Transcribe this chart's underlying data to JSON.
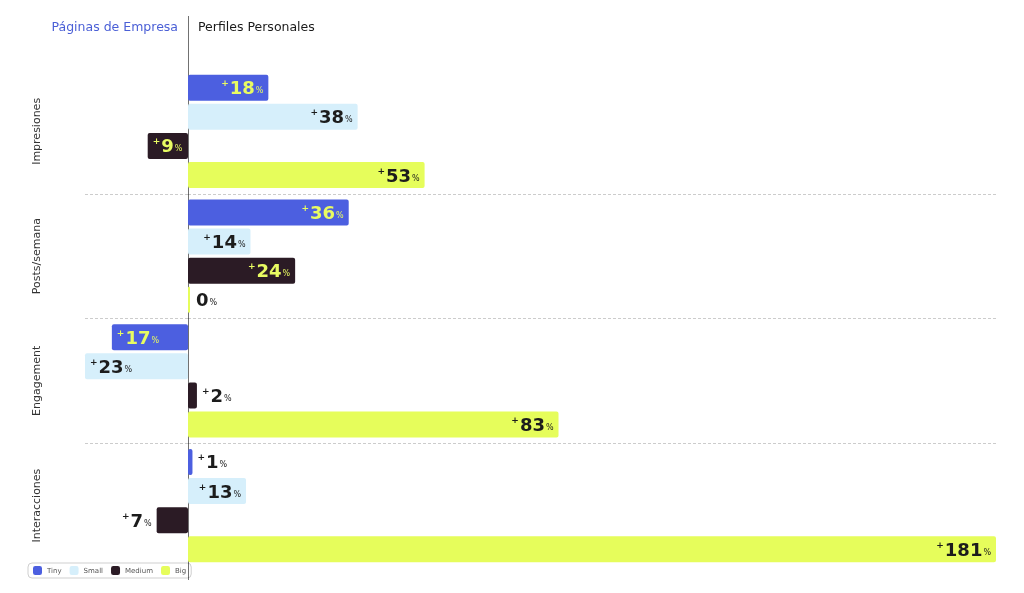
{
  "chart_data": [
    {
      "type": "bar",
      "orientation": "horizontal",
      "title": "Páginas de Empresa",
      "categories": [
        "Impresiones",
        "Posts/semana",
        "Engagement",
        "Interacciones"
      ],
      "series": [
        {
          "name": "Tiny",
          "color": "#4c5fe0",
          "values": [
            null,
            null,
            17,
            null
          ],
          "value_labels": [
            null,
            null,
            "+17%",
            null
          ]
        },
        {
          "name": "Small",
          "color": "#d6effb",
          "values": [
            null,
            null,
            23,
            null
          ],
          "value_labels": [
            null,
            null,
            "+23%",
            null
          ]
        },
        {
          "name": "Medium",
          "color": "#2b1b25",
          "values": [
            9,
            null,
            null,
            7
          ],
          "value_labels": [
            "+9%",
            null,
            null,
            "+7%"
          ]
        },
        {
          "name": "Big",
          "color": "#e6fd5b",
          "values": [
            null,
            null,
            null,
            null
          ]
        }
      ],
      "xlim": [
        23,
        0
      ],
      "grid": "y",
      "legend": "bottom left",
      "tick_labels": "y"
    },
    {
      "type": "bar",
      "orientation": "horizontal",
      "title": "Perfiles Personales",
      "categories": [
        null,
        null,
        null,
        null
      ],
      "series": [
        {
          "color": "#4c5fe0",
          "values": [
            18,
            36,
            null,
            1
          ],
          "value_labels": [
            "+18%",
            "+36%",
            null,
            "+1%"
          ]
        },
        {
          "color": "#d6effb",
          "values": [
            38,
            14,
            null,
            13
          ],
          "value_labels": [
            "+38%",
            "+14%",
            null,
            "+13%"
          ]
        },
        {
          "color": "#2b1b25",
          "values": [
            null,
            24,
            2,
            null
          ],
          "value_labels": [
            null,
            "+24%",
            "+2%",
            null
          ]
        },
        {
          "color": "#e6fd5b",
          "values": [
            53,
            0,
            83,
            181
          ],
          "value_labels": [
            "+53%",
            "0%",
            "+83%",
            "+181%"
          ]
        }
      ],
      "xlim": [
        0,
        181
      ],
      "grid": "y"
    }
  ]
}
